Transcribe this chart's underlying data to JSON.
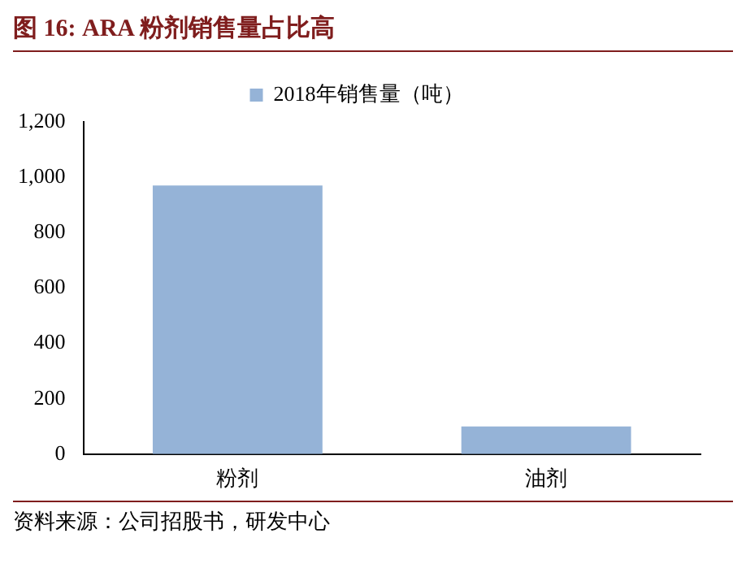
{
  "chart_data": {
    "type": "bar",
    "title": "图 16:  ARA 粉剂销售量占比高",
    "categories": [
      "粉剂",
      "油剂"
    ],
    "series": [
      {
        "name": "2018年销售量（吨）",
        "color": "#95b3d7",
        "values": [
          970,
          100
        ]
      }
    ],
    "ylim": [
      0,
      1200
    ],
    "yticks": [
      0,
      {
        "value": 200,
        "label": "200"
      },
      {
        "value": 400,
        "label": "400"
      },
      {
        "value": 600,
        "label": "600"
      },
      {
        "value": 800,
        "label": "800"
      },
      {
        "value": 1000,
        "label": "1,000"
      },
      {
        "value": 1200,
        "label": "1,200"
      }
    ],
    "grid": false,
    "legend": "top",
    "annotations": [
      "资料来源：公司招股书，研发中心"
    ]
  }
}
